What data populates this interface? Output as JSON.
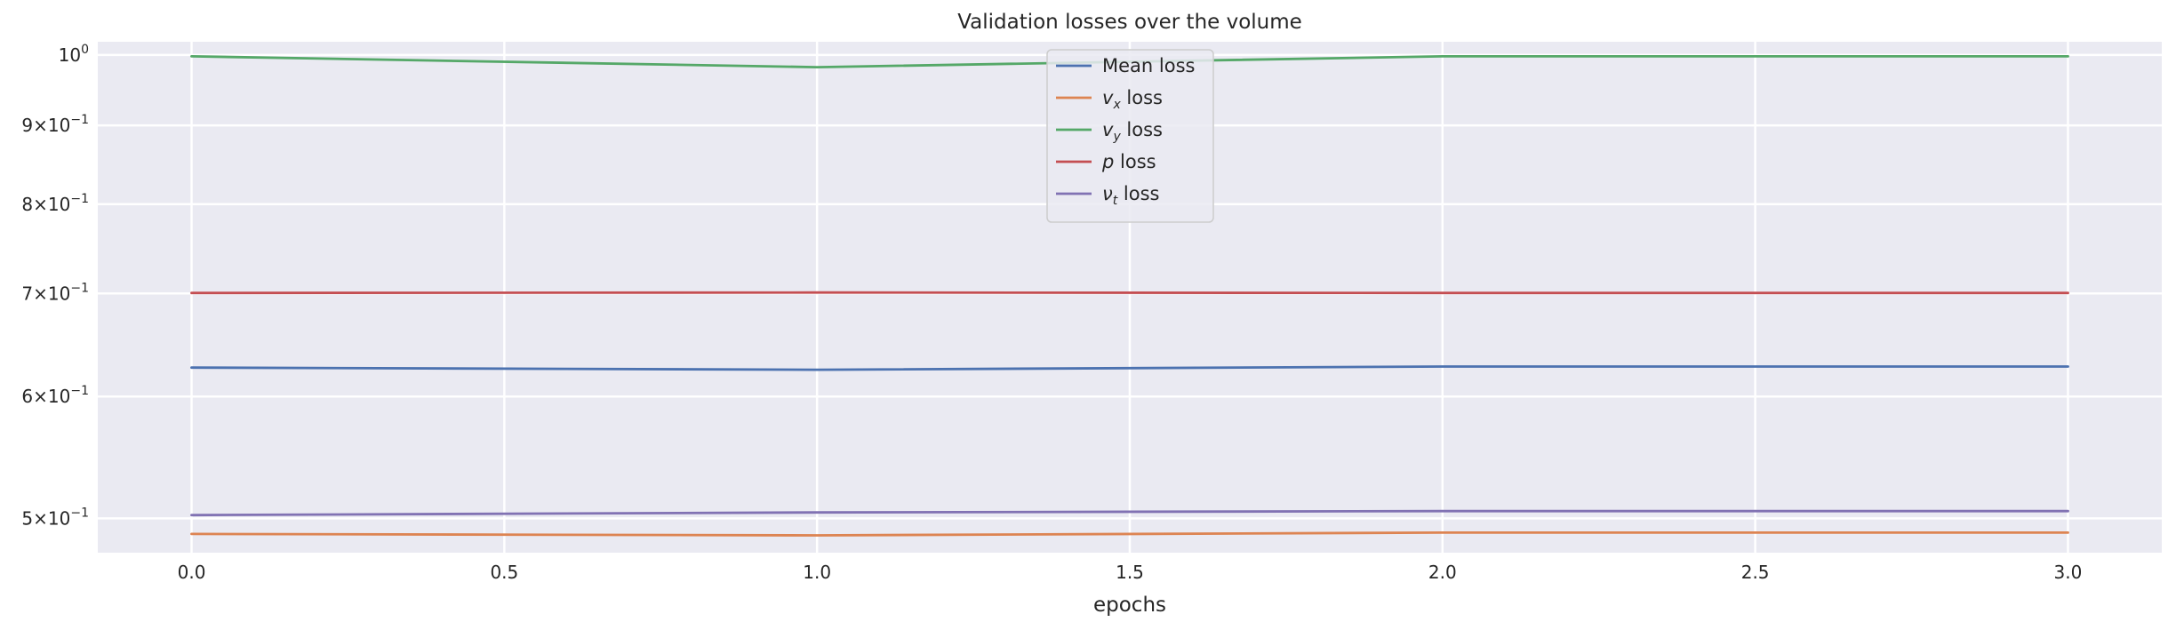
{
  "chart_data": {
    "type": "line",
    "title": "Validation losses over the volume",
    "xlabel": "epochs",
    "ylabel": "",
    "yscale": "log",
    "xlim": [
      -0.15,
      3.15
    ],
    "ylim": [
      0.475,
      1.02
    ],
    "grid": true,
    "legend_position": "upper center",
    "x_ticks": [
      0.0,
      0.5,
      1.0,
      1.5,
      2.0,
      2.5,
      3.0
    ],
    "x_tick_labels": [
      "0.0",
      "0.5",
      "1.0",
      "1.5",
      "2.0",
      "2.5",
      "3.0"
    ],
    "y_ticks": [
      {
        "value": 1.0,
        "mantissa": "",
        "exp": "0"
      },
      {
        "value": 0.9,
        "mantissa": "9",
        "exp": "−1"
      },
      {
        "value": 0.8,
        "mantissa": "8",
        "exp": "−1"
      },
      {
        "value": 0.7,
        "mantissa": "7",
        "exp": "−1"
      },
      {
        "value": 0.6,
        "mantissa": "6",
        "exp": "−1"
      },
      {
        "value": 0.5,
        "mantissa": "5",
        "exp": "−1"
      }
    ],
    "x": [
      0,
      1,
      2,
      3
    ],
    "series": [
      {
        "name": "Mean loss",
        "symbol": "",
        "sub": "",
        "suffix": "Mean loss",
        "color": "#4c72b0",
        "values": [
          0.6265,
          0.6245,
          0.6275,
          0.6275
        ]
      },
      {
        "name": "v_x loss",
        "symbol": "v",
        "sub": "x",
        "suffix": " loss",
        "color": "#dd8452",
        "values": [
          0.4885,
          0.4875,
          0.4895,
          0.4895
        ]
      },
      {
        "name": "v_y loss",
        "symbol": "v",
        "sub": "y",
        "suffix": " loss",
        "color": "#55a868",
        "values": [
          0.998,
          0.982,
          0.998,
          0.998
        ]
      },
      {
        "name": "p loss",
        "symbol": "p",
        "sub": "",
        "suffix": " loss",
        "color": "#c44e52",
        "values": [
          0.7005,
          0.701,
          0.7005,
          0.7005
        ]
      },
      {
        "name": "ν_t loss",
        "symbol": "ν",
        "sub": "t",
        "suffix": " loss",
        "color": "#8172b3",
        "values": [
          0.5025,
          0.5045,
          0.5055,
          0.5055
        ]
      }
    ]
  }
}
